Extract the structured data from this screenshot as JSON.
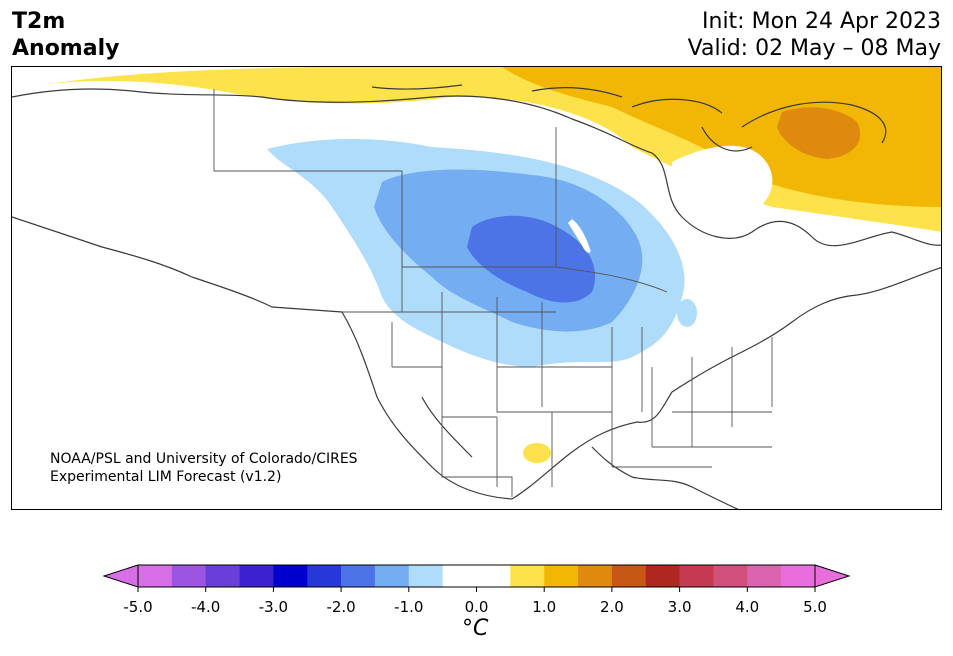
{
  "header": {
    "title_line1": "T2m",
    "title_line2": "Anomaly",
    "init": "Init: Mon 24 Apr 2023",
    "valid": "Valid: 02 May – 08 May"
  },
  "map": {
    "credit_line1": "NOAA/PSL and University of Colorado/CIRES",
    "credit_line2": "Experimental LIM Forecast (v1.2)"
  },
  "colorbar": {
    "unit_label": "°C",
    "ticks": [
      "-5.0",
      "-4.0",
      "-3.0",
      "-2.0",
      "-1.0",
      "0.0",
      "1.0",
      "2.0",
      "3.0",
      "4.0",
      "5.0"
    ],
    "colors": [
      "#d66fe6",
      "#9b55e0",
      "#6a3fd9",
      "#3c22cf",
      "#0000cc",
      "#2738d6",
      "#4d74e6",
      "#74adf2",
      "#aedcfa",
      "#ffffff",
      "#ffffff",
      "#fde24c",
      "#f2b705",
      "#dd8a0f",
      "#c65714",
      "#b02620",
      "#c43a52",
      "#d2507c",
      "#db64b0",
      "#e86fdb"
    ],
    "low_extend_color": "#d66fe6",
    "high_extend_color": "#e86fdb"
  },
  "legend_colors": {
    "light_blue": "#aedcfa",
    "mid_blue": "#74adf2",
    "blue": "#4d74e6",
    "yellow": "#fde24c",
    "orange": "#f2b705",
    "dark_orange": "#dd8a0f"
  }
}
